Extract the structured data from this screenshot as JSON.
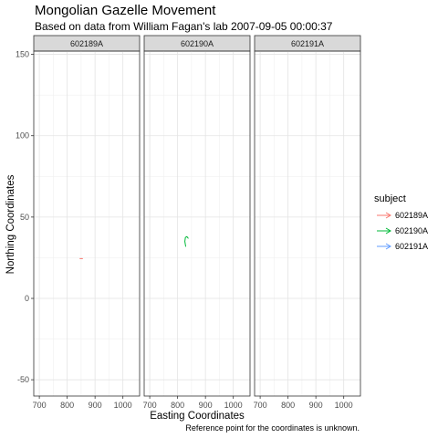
{
  "chart_data": {
    "type": "line",
    "title": "Mongolian Gazelle Movement",
    "subtitle": "Based on data from William Fagan's lab 2007-09-05 00:00:37",
    "xlabel": "Easting Coordinates",
    "ylabel": "Northing Coordinates",
    "caption": "Reference point for the coordinates is unknown.",
    "xlim": [
      680,
      1060
    ],
    "ylim": [
      -60,
      152
    ],
    "x_ticks": [
      700,
      800,
      900,
      1000
    ],
    "x_tick_labels": [
      "700",
      "800",
      "900",
      "1000"
    ],
    "y_ticks": [
      -50,
      0,
      50,
      100,
      150
    ],
    "y_tick_labels": [
      "-50",
      "0",
      "50",
      "100",
      "150"
    ],
    "grid": true,
    "legend": {
      "title": "subject",
      "position": "right"
    },
    "facets": [
      "602189A",
      "602190A",
      "602191A"
    ],
    "series": [
      {
        "name": "602189A",
        "color": "#F8766D",
        "facet": "602189A",
        "points": [
          [
            855,
            24.5
          ],
          [
            846,
            24.5
          ],
          [
            855,
            24.5
          ]
        ]
      },
      {
        "name": "602190A",
        "color": "#00BA38",
        "facet": "602190A",
        "points": [
          [
            829,
            32
          ],
          [
            826,
            35
          ],
          [
            828,
            37.5
          ],
          [
            833,
            38
          ],
          [
            838,
            37
          ]
        ]
      },
      {
        "name": "602191A",
        "color": "#619CFF",
        "facet": "602191A",
        "points": []
      }
    ]
  }
}
